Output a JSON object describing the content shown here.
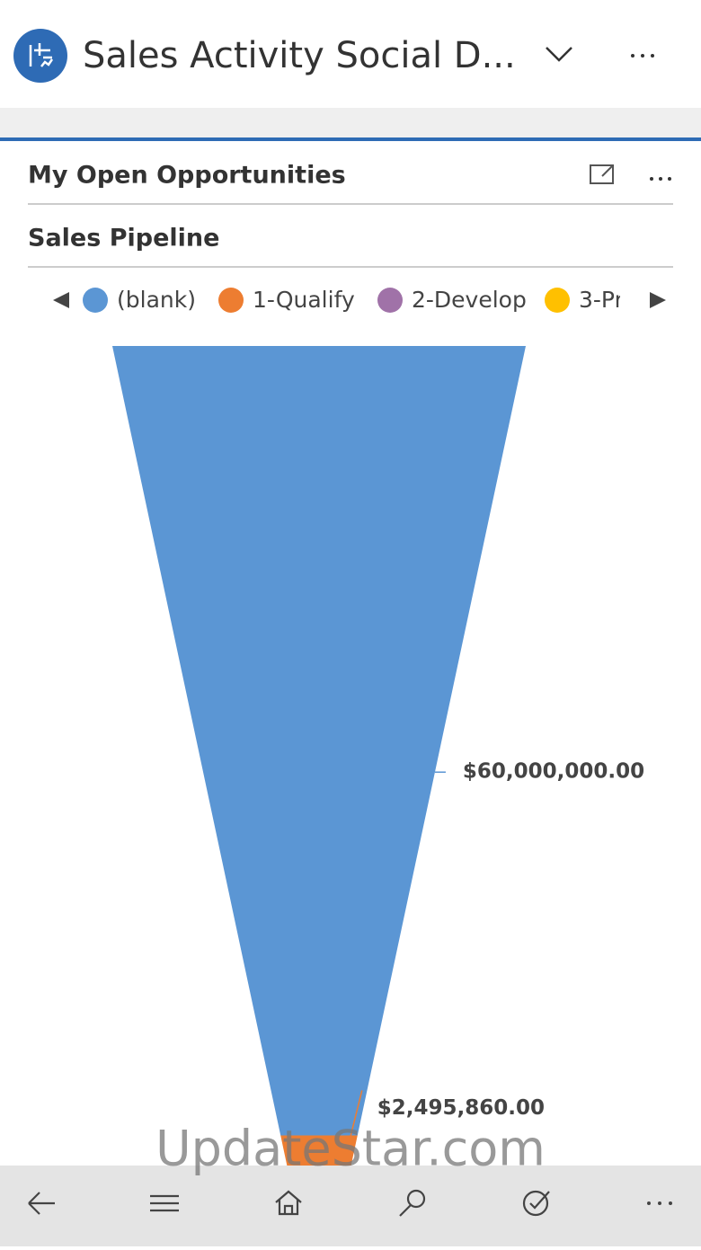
{
  "header": {
    "title": "Sales Activity Social D..."
  },
  "panel": {
    "title": "My Open Opportunities"
  },
  "chart_data": {
    "type": "funnel",
    "title": "Sales Pipeline",
    "categories": [
      "(blank)",
      "1-Qualify",
      "2-Develop",
      "3-Pr"
    ],
    "values": [
      60000000,
      2495860,
      null,
      null
    ],
    "value_labels": [
      "$60,000,000.00",
      "$2,495,860.00",
      null,
      null
    ],
    "colors": [
      "#5b96d4",
      "#ed7d31",
      "#a072a8",
      "#ffc000"
    ]
  },
  "watermark": "UpdateStar.com"
}
